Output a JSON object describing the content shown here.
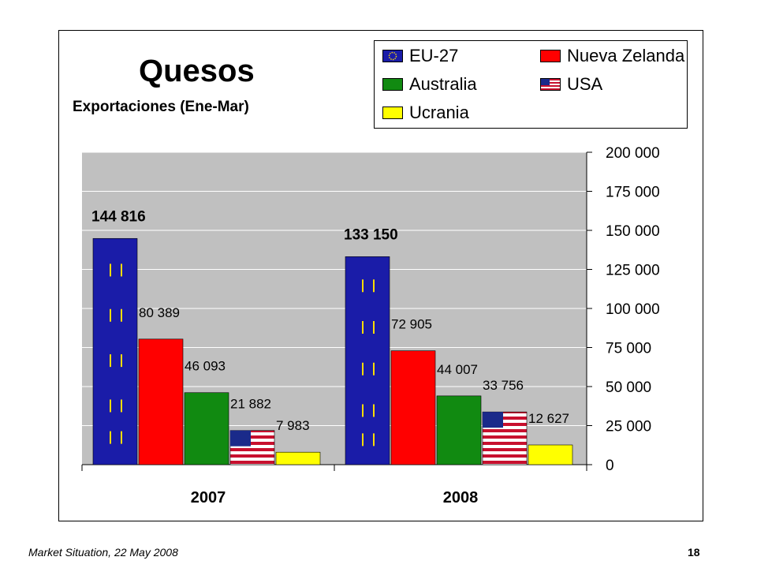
{
  "chart_data": {
    "type": "bar",
    "title": "Quesos",
    "subtitle": "Exportaciones  (Ene-Mar)",
    "categories": [
      "2007",
      "2008"
    ],
    "series": [
      {
        "name": "EU-27",
        "values": [
          144816,
          133150
        ],
        "color": "#1a1ca8",
        "labels": [
          "144 816",
          "133 150"
        ]
      },
      {
        "name": "Nueva Zelanda",
        "values": [
          80389,
          72905
        ],
        "color": "#ff0000",
        "labels": [
          "80 389",
          "72 905"
        ]
      },
      {
        "name": "Australia",
        "values": [
          46093,
          44007
        ],
        "color": "#118a11",
        "labels": [
          "46 093",
          "44 007"
        ]
      },
      {
        "name": "USA",
        "values": [
          21882,
          33756
        ],
        "color": "#c8102e",
        "labels": [
          "21 882",
          "33 756"
        ]
      },
      {
        "name": "Ucrania",
        "values": [
          7983,
          12627
        ],
        "color": "#ffff00",
        "labels": [
          "7 983",
          "12 627"
        ]
      }
    ],
    "ylim": [
      0,
      200000
    ],
    "yticks": [
      0,
      25000,
      50000,
      75000,
      100000,
      125000,
      150000,
      175000,
      200000
    ],
    "ytick_labels": [
      "0",
      "25 000",
      "50 000",
      "75 000",
      "100 000",
      "125 000",
      "150 000",
      "175 000",
      "200 000"
    ],
    "y_axis_side": "right",
    "grid": true,
    "legend_position": "top-right",
    "plot_background": "#c0c0c0"
  },
  "legend": {
    "items": [
      {
        "label": "EU-27",
        "color": "#1a1ca8",
        "icon": "eu-flag-icon"
      },
      {
        "label": "Nueva Zelanda",
        "color": "#ff0000",
        "icon": ""
      },
      {
        "label": "Australia",
        "color": "#118a11",
        "icon": ""
      },
      {
        "label": "USA",
        "color": "#c8102e",
        "icon": "us-flag-icon"
      },
      {
        "label": "Ucrania",
        "color": "#ffff00",
        "icon": ""
      }
    ]
  },
  "footer": {
    "source": "Market Situation, 22 May 2008",
    "page": "18"
  }
}
